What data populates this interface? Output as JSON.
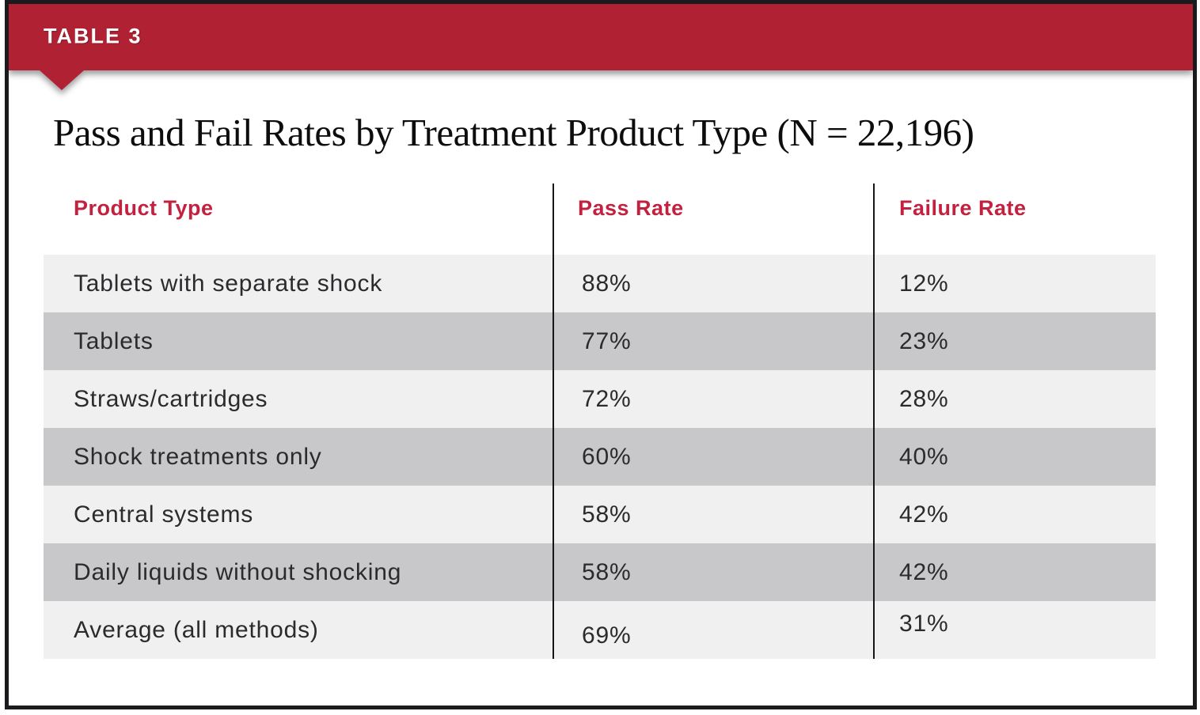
{
  "banner": {
    "label": "TABLE 3"
  },
  "title": "Pass and Fail Rates by Treatment Product Type (N = 22,196)",
  "table": {
    "columns": [
      "Product Type",
      "Pass Rate",
      "Failure Rate"
    ],
    "rows": [
      [
        "Tablets with separate shock",
        "88%",
        "12%"
      ],
      [
        "Tablets",
        "77%",
        "23%"
      ],
      [
        "Straws/cartridges",
        "72%",
        "28%"
      ],
      [
        "Shock treatments only",
        "60%",
        "40%"
      ],
      [
        "Central systems",
        "58%",
        "42%"
      ],
      [
        "Daily liquids without shocking",
        "58%",
        "42%"
      ],
      [
        "Average (all methods)",
        "69%",
        "31%"
      ]
    ]
  },
  "colors": {
    "banner_red": "#B02233",
    "header_red": "#C22240",
    "row_light": "#F0F0F1",
    "row_dark": "#C8C8CA",
    "divider_black": "#161616",
    "body_text": "#2B2B2D"
  },
  "chart_data": {
    "type": "table",
    "title": "Pass and Fail Rates by Treatment Product Type (N = 22,196)",
    "sample_size_n": "22,196",
    "columns": [
      "Product Type",
      "Pass Rate",
      "Failure Rate"
    ],
    "categories": [
      "Tablets with separate shock",
      "Tablets",
      "Straws/cartridges",
      "Shock treatments only",
      "Central systems",
      "Daily liquids without shocking",
      "Average (all methods)"
    ],
    "series": [
      {
        "name": "Pass Rate",
        "values": [
          88,
          77,
          72,
          60,
          58,
          58,
          69
        ],
        "unit": "%"
      },
      {
        "name": "Failure Rate",
        "values": [
          12,
          23,
          28,
          40,
          42,
          42,
          31
        ],
        "unit": "%"
      }
    ]
  }
}
